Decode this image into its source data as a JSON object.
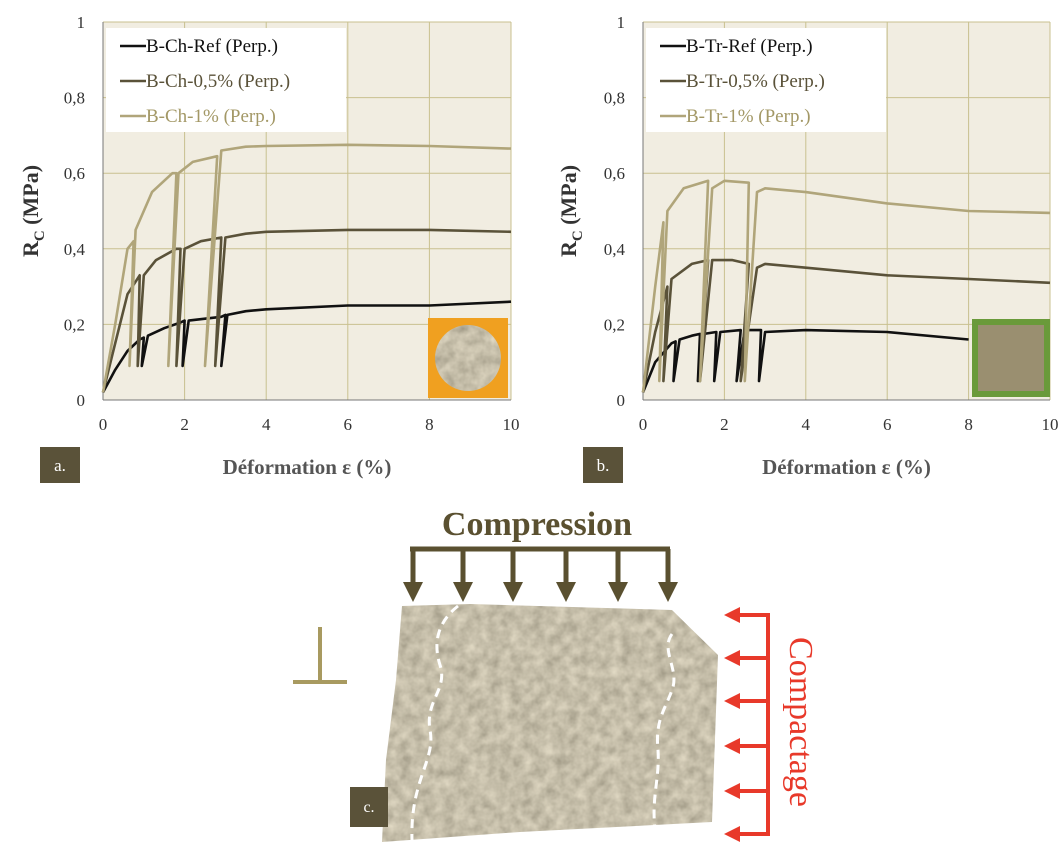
{
  "chart_data": [
    {
      "type": "line",
      "panel_label": "a.",
      "ylabel": "R",
      "ylabel_sub": "C",
      "ylabel_unit": " (MPa)",
      "xlabel": "Déformation ε (%)",
      "xlim": [
        0,
        10
      ],
      "ylim": [
        0,
        1
      ],
      "xticks": [
        0,
        2,
        4,
        6,
        8,
        10
      ],
      "yticks": [
        0,
        {
          "value": 0.2,
          "label": "0,2"
        },
        {
          "value": 0.4,
          "label": "0,4"
        },
        {
          "value": 0.6,
          "label": "0,6"
        },
        {
          "value": 0.8,
          "label": "0,8"
        },
        1
      ],
      "grid": true,
      "legend": "upper left",
      "series": [
        {
          "name": "B-Ch-Ref (Perp.)",
          "color": "#111111",
          "x": [
            0,
            0.3,
            0.6,
            0.9,
            1.0,
            0.95,
            1.1,
            1.5,
            1.9,
            2.0,
            1.95,
            2.1,
            2.5,
            2.9,
            3.0,
            2.9,
            3.05,
            3.5,
            4,
            6,
            8,
            10
          ],
          "values": [
            0.02,
            0.08,
            0.13,
            0.16,
            0.165,
            0.09,
            0.17,
            0.19,
            0.205,
            0.21,
            0.09,
            0.21,
            0.215,
            0.22,
            0.225,
            0.09,
            0.225,
            0.235,
            0.24,
            0.25,
            0.25,
            0.26
          ]
        },
        {
          "name": "B-Ch-0,5% (Perp.)",
          "color": "#5a5239",
          "x": [
            0,
            0.3,
            0.6,
            0.9,
            0.85,
            1.0,
            1.3,
            1.8,
            1.9,
            1.8,
            2.0,
            2.4,
            2.9,
            2.75,
            3.0,
            3.5,
            4,
            6,
            8,
            10
          ],
          "values": [
            0.02,
            0.15,
            0.28,
            0.33,
            0.09,
            0.33,
            0.37,
            0.4,
            0.4,
            0.09,
            0.4,
            0.42,
            0.43,
            0.09,
            0.43,
            0.44,
            0.445,
            0.45,
            0.45,
            0.445
          ]
        },
        {
          "name": "B-Ch-1% (Perp.)",
          "color": "#b0a57a",
          "x": [
            0,
            0.3,
            0.6,
            0.75,
            0.65,
            0.8,
            1.2,
            1.7,
            1.8,
            1.6,
            1.85,
            2.2,
            2.8,
            2.5,
            2.9,
            3.5,
            4,
            6,
            8,
            10
          ],
          "values": [
            0.02,
            0.2,
            0.4,
            0.42,
            0.09,
            0.45,
            0.55,
            0.6,
            0.6,
            0.09,
            0.6,
            0.63,
            0.645,
            0.09,
            0.66,
            0.67,
            0.672,
            0.675,
            0.672,
            0.665
          ]
        }
      ]
    },
    {
      "type": "line",
      "panel_label": "b.",
      "ylabel": "R",
      "ylabel_sub": "C",
      "ylabel_unit": " (MPa)",
      "xlabel": "Déformation ε (%)",
      "xlim": [
        0,
        10
      ],
      "ylim": [
        0,
        1
      ],
      "xticks": [
        0,
        2,
        4,
        6,
        8,
        10
      ],
      "yticks": [
        0,
        {
          "value": 0.2,
          "label": "0,2"
        },
        {
          "value": 0.4,
          "label": "0,4"
        },
        {
          "value": 0.6,
          "label": "0,6"
        },
        {
          "value": 0.8,
          "label": "0,8"
        },
        1
      ],
      "grid": true,
      "legend": "upper left",
      "series": [
        {
          "name": "B-Tr-Ref (Perp.)",
          "color": "#111111",
          "x": [
            0,
            0.3,
            0.7,
            0.8,
            0.75,
            0.9,
            1.2,
            1.4,
            1.35,
            1.5,
            1.8,
            1.75,
            1.9,
            2.4,
            2.3,
            2.5,
            2.9,
            2.85,
            3.0,
            4,
            6,
            8
          ],
          "values": [
            0.02,
            0.1,
            0.15,
            0.155,
            0.05,
            0.16,
            0.17,
            0.175,
            0.05,
            0.175,
            0.18,
            0.05,
            0.18,
            0.185,
            0.05,
            0.185,
            0.185,
            0.05,
            0.18,
            0.185,
            0.18,
            0.16
          ]
        },
        {
          "name": "B-Tr-0,5% (Perp.)",
          "color": "#5a5239",
          "x": [
            0,
            0.3,
            0.6,
            0.5,
            0.7,
            1.2,
            1.6,
            1.4,
            1.7,
            2.2,
            2.6,
            2.4,
            2.8,
            3,
            4,
            6,
            8,
            10
          ],
          "values": [
            0.02,
            0.18,
            0.3,
            0.05,
            0.32,
            0.36,
            0.37,
            0.05,
            0.37,
            0.37,
            0.36,
            0.05,
            0.35,
            0.36,
            0.35,
            0.33,
            0.32,
            0.31
          ]
        },
        {
          "name": "B-Tr-1% (Perp.)",
          "color": "#b0a57a",
          "x": [
            0,
            0.3,
            0.5,
            0.4,
            0.6,
            1.0,
            1.6,
            1.4,
            1.7,
            2.0,
            2.6,
            2.5,
            2.8,
            3,
            4,
            6,
            8,
            10
          ],
          "values": [
            0.02,
            0.3,
            0.47,
            0.05,
            0.5,
            0.56,
            0.58,
            0.05,
            0.56,
            0.58,
            0.575,
            0.05,
            0.55,
            0.56,
            0.55,
            0.52,
            0.5,
            0.495
          ]
        }
      ]
    }
  ],
  "diagram": {
    "title": "Compression",
    "side_label": "Compactage",
    "panel_label": "c."
  }
}
